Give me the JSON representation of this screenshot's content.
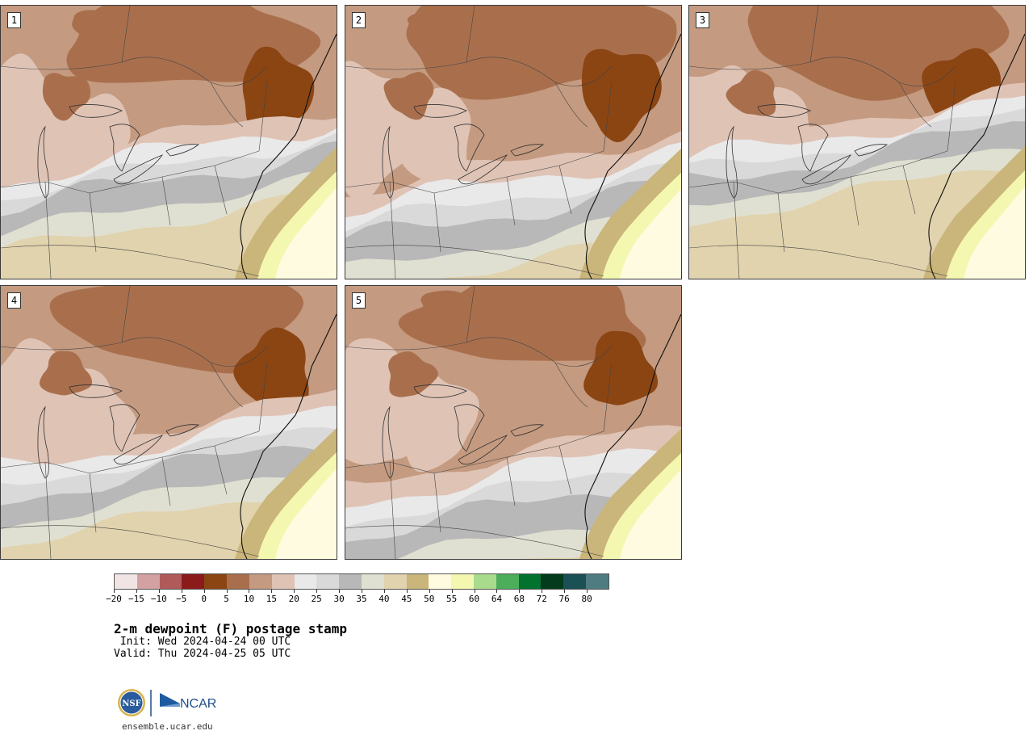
{
  "panels": [
    {
      "label": "1",
      "moist": 1.0,
      "dry": 0.9
    },
    {
      "label": "2",
      "moist": 0.85,
      "dry": 1.0
    },
    {
      "label": "3",
      "moist": 1.15,
      "dry": 0.95
    },
    {
      "label": "4",
      "moist": 0.95,
      "dry": 0.9
    },
    {
      "label": "5",
      "moist": 0.8,
      "dry": 0.85
    }
  ],
  "legend": {
    "colors": [
      "#f0e4e4",
      "#d3a1a1",
      "#b05a5a",
      "#8b1a1a",
      "#8b4513",
      "#a96f4d",
      "#c49a80",
      "#dfc3b5",
      "#e9e9e9",
      "#d9d9d9",
      "#b8b8b8",
      "#e0e0d2",
      "#e1d3ae",
      "#cab57a",
      "#fffbe0",
      "#f4f7b0",
      "#a9db8d",
      "#4cad5b",
      "#03722f",
      "#033b1c",
      "#1b5054",
      "#4f7c80"
    ],
    "ticks": [
      "−20",
      "−15",
      "−10",
      "−5",
      "0",
      "5",
      "10",
      "15",
      "20",
      "25",
      "30",
      "35",
      "40",
      "45",
      "50",
      "55",
      "60",
      "64",
      "68",
      "72",
      "76",
      "80"
    ]
  },
  "title": "2-m dewpoint (F) postage stamp",
  "init": " Init: Wed 2024-04-24 00 UTC",
  "valid": "Valid: Thu 2024-04-25 05 UTC",
  "logos": {
    "nsf_text": "NSF",
    "ncar_text": "NCAR"
  },
  "site": "ensemble.ucar.edu"
}
